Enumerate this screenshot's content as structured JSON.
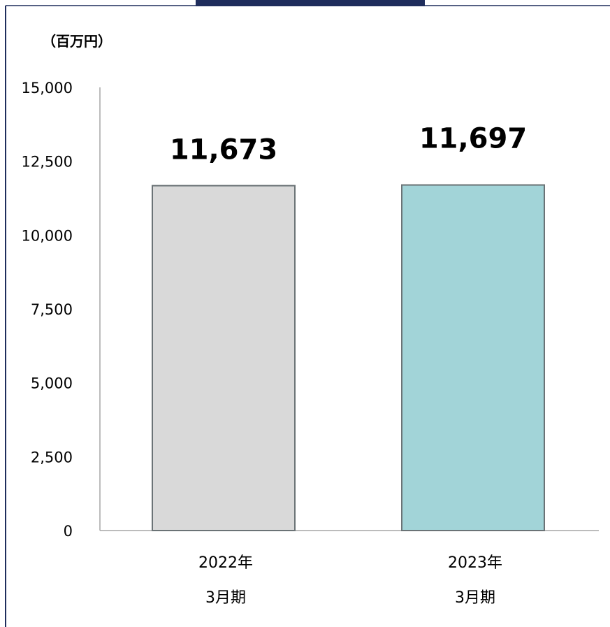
{
  "chart_data": {
    "type": "bar",
    "unit_label": "（百万円）",
    "categories": [
      {
        "line1": "2022年",
        "line2": "3月期"
      },
      {
        "line1": "2023年",
        "line2": "3月期"
      }
    ],
    "values": [
      11673,
      11697
    ],
    "value_labels": [
      "11,673",
      "11,697"
    ],
    "bar_colors": [
      "#d9d9d9",
      "#a2d4d8"
    ],
    "bar_outline_color": "#6b7376",
    "frame_color": "#1f2d5c",
    "ylim": [
      0,
      15000
    ],
    "yticks": [
      {
        "value": 0,
        "label": "0"
      },
      {
        "value": 2500,
        "label": "2,500"
      },
      {
        "value": 5000,
        "label": "5,000"
      },
      {
        "value": 7500,
        "label": "7,500"
      },
      {
        "value": 10000,
        "label": "10,000"
      },
      {
        "value": 12500,
        "label": "12,500"
      },
      {
        "value": 15000,
        "label": "15,000"
      }
    ],
    "grid": false,
    "legend": "none"
  }
}
